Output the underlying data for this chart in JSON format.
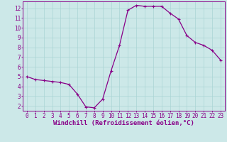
{
  "x": [
    0,
    1,
    2,
    3,
    4,
    5,
    6,
    7,
    8,
    9,
    10,
    11,
    12,
    13,
    14,
    15,
    16,
    17,
    18,
    19,
    20,
    21,
    22,
    23
  ],
  "y": [
    5.0,
    4.7,
    4.6,
    4.5,
    4.4,
    4.2,
    3.2,
    1.9,
    1.8,
    2.7,
    5.6,
    8.2,
    11.8,
    12.3,
    12.2,
    12.2,
    12.2,
    11.5,
    10.9,
    9.2,
    8.5,
    8.2,
    7.7,
    6.7
  ],
  "line_color": "#880088",
  "marker": "+",
  "marker_size": 3,
  "marker_linewidth": 0.8,
  "bg_color": "#cce8e8",
  "grid_color": "#aad4d4",
  "xlabel": "Windchill (Refroidissement éolien,°C)",
  "xlabel_color": "#880088",
  "tick_color": "#880088",
  "spine_color": "#880088",
  "ylim": [
    1.5,
    12.7
  ],
  "xlim": [
    -0.5,
    23.5
  ],
  "yticks": [
    2,
    3,
    4,
    5,
    6,
    7,
    8,
    9,
    10,
    11,
    12
  ],
  "xticks": [
    0,
    1,
    2,
    3,
    4,
    5,
    6,
    7,
    8,
    9,
    10,
    11,
    12,
    13,
    14,
    15,
    16,
    17,
    18,
    19,
    20,
    21,
    22,
    23
  ],
  "xlabel_fontsize": 6.5,
  "tick_fontsize": 5.5,
  "linewidth": 0.9
}
